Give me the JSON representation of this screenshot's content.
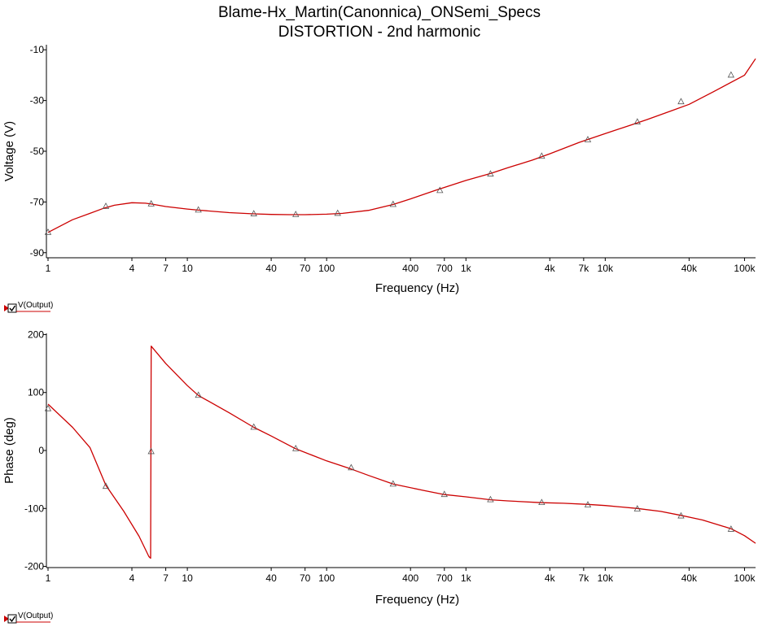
{
  "title": "Blame-Hx_Martin(Canonnica)_ONSemi_Specs",
  "subtitle": "DISTORTION - 2nd harmonic",
  "colors": {
    "trace": "#cc0000",
    "axis": "#000000",
    "marker": "#555555",
    "background": "#ffffff"
  },
  "chart_data": [
    {
      "type": "line",
      "xscale": "log",
      "xlabel": "Frequency (Hz)",
      "ylabel": "Voltage (V)",
      "xlim": [
        1,
        120000
      ],
      "ylim": [
        -92,
        -8
      ],
      "xticks": [
        {
          "value": 1,
          "label": "1"
        },
        {
          "value": 4,
          "label": "4"
        },
        {
          "value": 7,
          "label": "7"
        },
        {
          "value": 10,
          "label": "10"
        },
        {
          "value": 40,
          "label": "40"
        },
        {
          "value": 70,
          "label": "70"
        },
        {
          "value": 100,
          "label": "100"
        },
        {
          "value": 400,
          "label": "400"
        },
        {
          "value": 700,
          "label": "700"
        },
        {
          "value": 1000,
          "label": "1k"
        },
        {
          "value": 4000,
          "label": "4k"
        },
        {
          "value": 7000,
          "label": "7k"
        },
        {
          "value": 10000,
          "label": "10k"
        },
        {
          "value": 40000,
          "label": "40k"
        },
        {
          "value": 100000,
          "label": "100k"
        }
      ],
      "yticks": [
        {
          "value": -10,
          "label": "-10"
        },
        {
          "value": -30,
          "label": "-30"
        },
        {
          "value": -50,
          "label": "-50"
        },
        {
          "value": -70,
          "label": "-70"
        },
        {
          "value": -90,
          "label": "-90"
        }
      ],
      "series": [
        {
          "name": "V(Output)",
          "x": [
            1,
            1.5,
            2,
            2.5,
            3,
            4,
            5,
            5.5,
            7,
            10,
            12,
            20,
            30,
            40,
            55,
            70,
            100,
            130,
            200,
            300,
            400,
            600,
            1000,
            1500,
            2000,
            3000,
            4000,
            6500,
            10000,
            15000,
            20000,
            30000,
            40000,
            60000,
            100000,
            120000
          ],
          "y": [
            -82,
            -77,
            -74.5,
            -72.5,
            -71.3,
            -70.3,
            -70.5,
            -70.8,
            -71.8,
            -72.8,
            -73.2,
            -74.2,
            -74.7,
            -74.9,
            -75,
            -75,
            -74.8,
            -74.5,
            -73.3,
            -71,
            -68.8,
            -65.5,
            -61.5,
            -58.8,
            -56.5,
            -53.5,
            -51,
            -46.5,
            -43,
            -39.8,
            -37.5,
            -34,
            -31.5,
            -26.5,
            -20,
            -13.5
          ],
          "markers_x": [
            1,
            2.6,
            5.5,
            12,
            30,
            60,
            120,
            300,
            650,
            1500,
            3500,
            7500,
            17000,
            35000,
            80000
          ],
          "markers_y": [
            -82,
            -71.8,
            -70.8,
            -73.2,
            -74.7,
            -75,
            -74.5,
            -71,
            -65.5,
            -59,
            -52,
            -45.5,
            -38.5,
            -30.5,
            -20
          ]
        }
      ]
    },
    {
      "type": "line",
      "xscale": "log",
      "xlabel": "Frequency (Hz)",
      "ylabel": "Phase (deg)",
      "xlim": [
        1,
        120000
      ],
      "ylim": [
        -202,
        202
      ],
      "xticks": [
        {
          "value": 1,
          "label": "1"
        },
        {
          "value": 4,
          "label": "4"
        },
        {
          "value": 7,
          "label": "7"
        },
        {
          "value": 10,
          "label": "10"
        },
        {
          "value": 40,
          "label": "40"
        },
        {
          "value": 70,
          "label": "70"
        },
        {
          "value": 100,
          "label": "100"
        },
        {
          "value": 400,
          "label": "400"
        },
        {
          "value": 700,
          "label": "700"
        },
        {
          "value": 1000,
          "label": "1k"
        },
        {
          "value": 4000,
          "label": "4k"
        },
        {
          "value": 7000,
          "label": "7k"
        },
        {
          "value": 10000,
          "label": "10k"
        },
        {
          "value": 40000,
          "label": "40k"
        },
        {
          "value": 100000,
          "label": "100k"
        }
      ],
      "yticks": [
        {
          "value": 200,
          "label": "200"
        },
        {
          "value": 100,
          "label": "100"
        },
        {
          "value": 0,
          "label": "0"
        },
        {
          "value": -100,
          "label": "-100"
        },
        {
          "value": -200,
          "label": "-200"
        }
      ],
      "series": [
        {
          "name": "V(Output)",
          "x": [
            1,
            1.5,
            2,
            2.6,
            3.5,
            4.5,
            5.3,
            5.45,
            5.5,
            7,
            10,
            12,
            20,
            30,
            40,
            60,
            100,
            150,
            200,
            300,
            500,
            700,
            1000,
            1500,
            2000,
            3500,
            5000,
            7500,
            10000,
            17000,
            25000,
            35000,
            50000,
            80000,
            100000,
            120000
          ],
          "y": [
            80,
            40,
            5,
            -60,
            -105,
            -148,
            -183,
            -186,
            180,
            150,
            112,
            95,
            65,
            40,
            25,
            3,
            -18,
            -32,
            -43,
            -58,
            -69,
            -76,
            -80,
            -85,
            -87,
            -90,
            -91,
            -93,
            -95,
            -100,
            -105,
            -112,
            -120,
            -135,
            -147,
            -160
          ],
          "markers_x": [
            1,
            2.6,
            5.5,
            12,
            30,
            60,
            150,
            300,
            700,
            1500,
            3500,
            7500,
            17000,
            35000,
            80000
          ],
          "markers_y": [
            72,
            -62,
            -2,
            95,
            40,
            3,
            -30,
            -58,
            -76,
            -85,
            -90,
            -94,
            -101,
            -113,
            -136
          ]
        }
      ]
    }
  ],
  "legends": [
    {
      "checkbox": "☑",
      "label": "V(Output)"
    },
    {
      "checkbox": "☑",
      "label": "V(Output)"
    }
  ]
}
